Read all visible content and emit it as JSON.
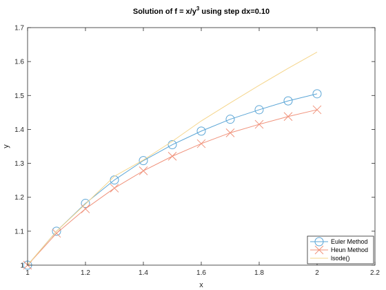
{
  "chart_data": {
    "type": "line",
    "title_main": "Solution of f = x/y",
    "title_sup": "3",
    "title_rest": " using step dx=0.10",
    "xlabel": "x",
    "ylabel": "y",
    "xlim": [
      1,
      2.2
    ],
    "ylim": [
      1,
      1.7
    ],
    "xticks": [
      1,
      1.2,
      1.4,
      1.6,
      1.8,
      2,
      2.2
    ],
    "xtick_labels": [
      "1",
      "1.2",
      "1.4",
      "1.6",
      "1.8",
      "2",
      "2.2"
    ],
    "yticks": [
      1,
      1.1,
      1.2,
      1.3,
      1.4,
      1.5,
      1.6,
      1.7
    ],
    "ytick_labels": [
      "1",
      "1.1",
      "1.2",
      "1.3",
      "1.4",
      "1.5",
      "1.6",
      "1.7"
    ],
    "grid": false,
    "legend_position": "bottom-right",
    "series": [
      {
        "name": "Euler Method",
        "color": "#5aa5d6",
        "marker": "circle",
        "x": [
          1.0,
          1.1,
          1.2,
          1.3,
          1.4,
          1.5,
          1.6,
          1.7,
          1.8,
          1.9,
          2.0
        ],
        "y": [
          1.0,
          1.1,
          1.182,
          1.251,
          1.308,
          1.355,
          1.395,
          1.43,
          1.458,
          1.484,
          1.505
        ]
      },
      {
        "name": "Heun Method",
        "color": "#f0917a",
        "marker": "x",
        "x": [
          1.0,
          1.1,
          1.2,
          1.3,
          1.4,
          1.5,
          1.6,
          1.7,
          1.8,
          1.9,
          2.0
        ],
        "y": [
          1.0,
          1.094,
          1.166,
          1.227,
          1.278,
          1.321,
          1.358,
          1.39,
          1.415,
          1.438,
          1.458
        ]
      },
      {
        "name": "lsode()",
        "color": "#f5d58a",
        "marker": "none",
        "x": [
          1.0,
          1.1,
          1.2,
          1.3,
          1.4,
          1.5,
          1.6,
          1.7,
          1.8,
          1.9,
          2.0
        ],
        "y": [
          1.0,
          1.1,
          1.18,
          1.262,
          1.31,
          1.365,
          1.425,
          1.478,
          1.53,
          1.58,
          1.628
        ]
      }
    ]
  }
}
